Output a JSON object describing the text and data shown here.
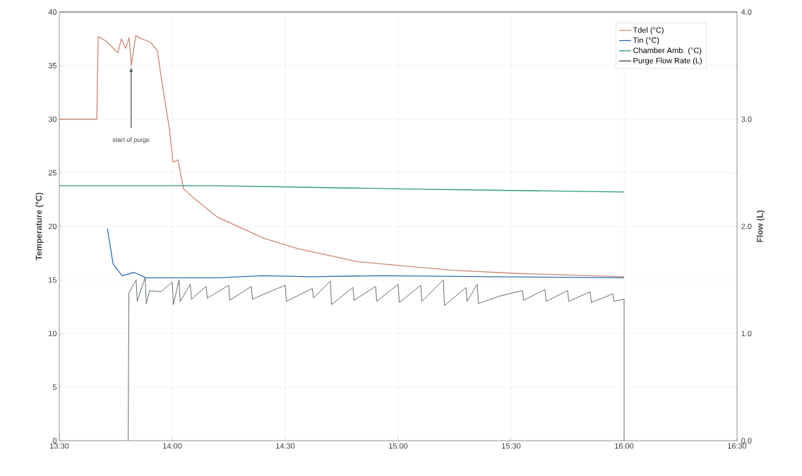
{
  "chart_data": {
    "type": "line",
    "ylabel": "Temperature (°C)",
    "y2label": "Flow (L)",
    "xlim": [
      13.5,
      16.5
    ],
    "xticks": [
      {
        "value": 13.5,
        "label": "13:30"
      },
      {
        "value": 14,
        "label": "14:00"
      },
      {
        "value": 14.5,
        "label": "14:30"
      },
      {
        "value": 15,
        "label": "15:00"
      },
      {
        "value": 15.5,
        "label": "15:30"
      },
      {
        "value": 16,
        "label": "16:00"
      },
      {
        "value": 16.5,
        "label": "16:30"
      }
    ],
    "ylim": [
      0,
      40
    ],
    "yticks": [
      0,
      5,
      10,
      15,
      20,
      25,
      30,
      35,
      40
    ],
    "y2lim": [
      0,
      4
    ],
    "y2ticks": [
      {
        "value": 0,
        "label": "0.0"
      },
      {
        "value": 0.5,
        "label": null
      },
      {
        "value": 1,
        "label": "1.0"
      },
      {
        "value": 1.5,
        "label": null
      },
      {
        "value": 2,
        "label": "2.0"
      },
      {
        "value": 2.5,
        "label": null
      },
      {
        "value": 3,
        "label": "3.0"
      },
      {
        "value": 3.5,
        "label": null
      },
      {
        "value": 4,
        "label": "4.0"
      }
    ],
    "grid": true,
    "legend": "top right",
    "marker": "none",
    "line_style": "solid",
    "annotations": [
      "start of purge"
    ],
    "series": [
      {
        "name": "Tdel (°C)",
        "color": "#c98a72",
        "x": [
          13.5,
          13.666,
          13.672,
          13.706,
          13.759,
          13.775,
          13.794,
          13.809,
          13.819,
          13.838,
          13.863,
          13.903,
          13.934,
          13.947,
          13.966,
          13.988,
          14.003,
          14.025,
          14.05,
          14.103,
          14.197,
          14.403,
          14.559,
          14.822,
          15.028,
          15.238,
          15.528,
          16.0
        ],
        "values": [
          30,
          30,
          37.7,
          37.3,
          36.2,
          37.5,
          36.6,
          37.6,
          35.0,
          37.8,
          37.5,
          37.2,
          36.4,
          34.5,
          31.9,
          29.0,
          26.0,
          26.2,
          23.5,
          22.5,
          20.9,
          18.9,
          17.9,
          16.7,
          16.3,
          15.9,
          15.6,
          15.3
        ]
      },
      {
        "name": "Tin (°C)",
        "color": "#2f6fb2",
        "x": [
          13.713,
          13.738,
          13.778,
          13.831,
          13.884,
          14.197,
          14.403,
          14.613,
          14.925,
          15.425,
          16.0
        ],
        "values": [
          19.8,
          16.5,
          15.4,
          15.7,
          15.2,
          15.2,
          15.4,
          15.3,
          15.4,
          15.3,
          15.2
        ]
      },
      {
        "name": "Chamber Amb. (°C)",
        "color": "#2a9a7c",
        "x": [
          13.5,
          14.175,
          14.988,
          16.0
        ],
        "values": [
          23.8,
          23.8,
          23.5,
          23.2
        ]
      },
      {
        "name": "Purge Flow Rate (L)",
        "color": "#3b4b52",
        "axis": "y2",
        "x": [
          13.805,
          13.808,
          13.84,
          13.845,
          13.86,
          13.88,
          13.885,
          13.9,
          13.95,
          14.0,
          14.005,
          14.03,
          14.035,
          14.08,
          14.085,
          14.15,
          14.155,
          14.25,
          14.255,
          14.35,
          14.355,
          14.42,
          14.5,
          14.505,
          14.62,
          14.625,
          14.7,
          14.705,
          14.8,
          14.805,
          14.9,
          14.905,
          15.0,
          15.005,
          15.1,
          15.105,
          15.2,
          15.205,
          15.3,
          15.305,
          15.35,
          15.355,
          15.45,
          15.55,
          15.555,
          15.65,
          15.655,
          15.75,
          15.755,
          15.85,
          15.855,
          15.95,
          15.955,
          16.0,
          16.0
        ],
        "values": [
          0,
          1.38,
          1.5,
          1.3,
          1.4,
          1.52,
          1.28,
          1.4,
          1.39,
          1.48,
          1.27,
          1.5,
          1.3,
          1.46,
          1.32,
          1.44,
          1.33,
          1.45,
          1.31,
          1.44,
          1.32,
          1.38,
          1.45,
          1.3,
          1.42,
          1.33,
          1.49,
          1.27,
          1.43,
          1.31,
          1.44,
          1.3,
          1.46,
          1.29,
          1.45,
          1.3,
          1.5,
          1.26,
          1.43,
          1.3,
          1.46,
          1.28,
          1.35,
          1.4,
          1.31,
          1.41,
          1.3,
          1.4,
          1.3,
          1.39,
          1.29,
          1.37,
          1.3,
          1.32,
          0
        ]
      }
    ]
  }
}
